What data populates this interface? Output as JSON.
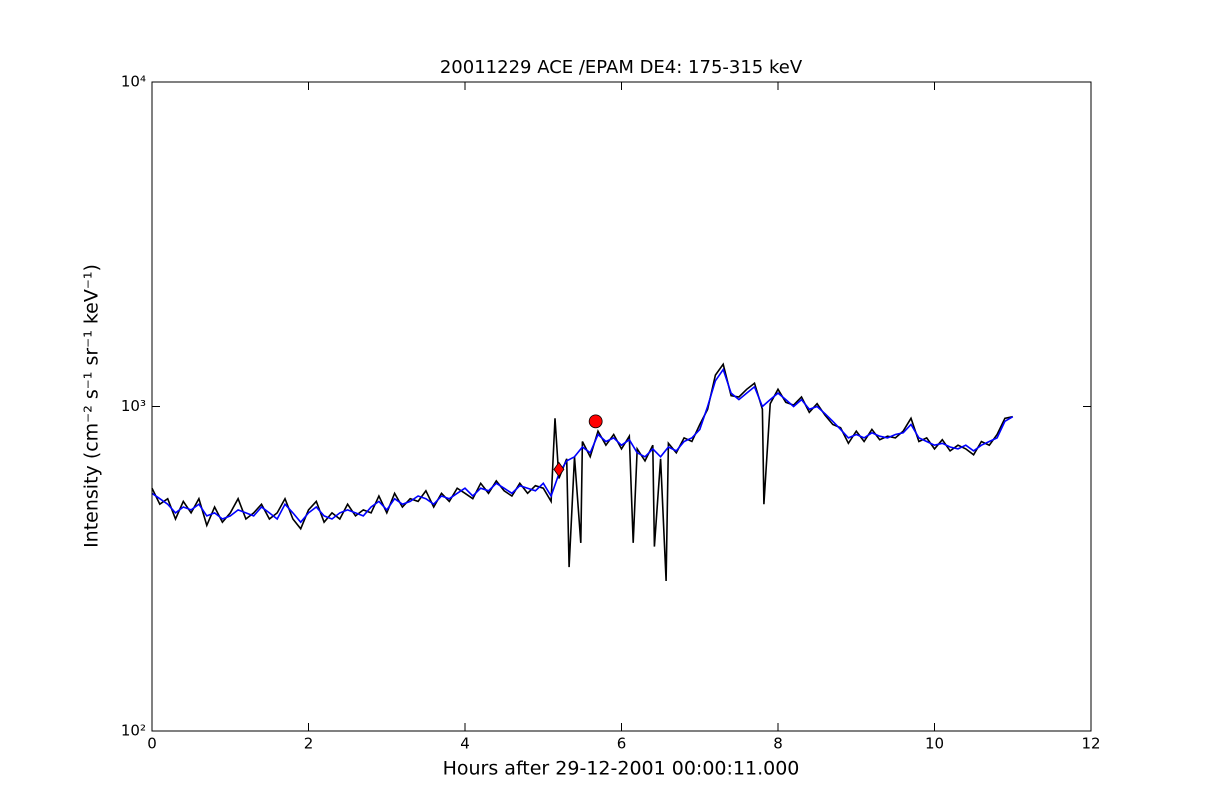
{
  "chart_data": {
    "type": "line",
    "title": "20011229 ACE /EPAM DE4: 175-315 keV",
    "x_label": "Hours after 29-12-2001 00:00:11.000",
    "y_label": "Intensity (cm⁻² s⁻¹ sr⁻¹ keV⁻¹)",
    "xlim": [
      0,
      12
    ],
    "xticks": [
      0,
      2,
      4,
      6,
      8,
      10,
      12
    ],
    "ylim": [
      100,
      10000
    ],
    "y_scale": "log",
    "yticks": [
      {
        "value": 100,
        "label": "10²"
      },
      {
        "value": 1000,
        "label": "10³"
      },
      {
        "value": 10000,
        "label": "10⁴"
      }
    ],
    "series": [
      {
        "color": "#000000",
        "style": "line",
        "x": [
          0,
          0.1,
          0.2,
          0.3,
          0.4,
          0.5,
          0.6,
          0.7,
          0.8,
          0.9,
          1.0,
          1.1,
          1.2,
          1.3,
          1.4,
          1.5,
          1.6,
          1.7,
          1.8,
          1.9,
          2.0,
          2.1,
          2.2,
          2.3,
          2.4,
          2.5,
          2.6,
          2.7,
          2.8,
          2.9,
          3.0,
          3.1,
          3.2,
          3.3,
          3.4,
          3.5,
          3.6,
          3.7,
          3.8,
          3.9,
          4.0,
          4.1,
          4.2,
          4.3,
          4.4,
          4.5,
          4.6,
          4.7,
          4.8,
          4.9,
          5.0,
          5.1,
          5.15,
          5.2,
          5.3,
          5.33,
          5.4,
          5.48,
          5.5,
          5.6,
          5.7,
          5.8,
          5.9,
          6.0,
          6.1,
          6.15,
          6.2,
          6.3,
          6.4,
          6.42,
          6.5,
          6.57,
          6.6,
          6.7,
          6.8,
          6.9,
          7.0,
          7.1,
          7.2,
          7.3,
          7.4,
          7.5,
          7.6,
          7.7,
          7.8,
          7.82,
          7.9,
          8.0,
          8.1,
          8.2,
          8.3,
          8.4,
          8.5,
          8.6,
          8.7,
          8.8,
          8.9,
          9.0,
          9.1,
          9.2,
          9.3,
          9.4,
          9.5,
          9.6,
          9.7,
          9.8,
          9.9,
          10.0,
          10.1,
          10.2,
          10.3,
          10.4,
          10.5,
          10.6,
          10.7,
          10.8,
          10.9,
          11.0
        ],
        "values": [
          560,
          500,
          520,
          450,
          510,
          470,
          520,
          430,
          490,
          440,
          470,
          520,
          450,
          470,
          500,
          450,
          470,
          520,
          450,
          420,
          480,
          510,
          440,
          470,
          450,
          500,
          460,
          480,
          470,
          530,
          470,
          540,
          490,
          520,
          510,
          550,
          490,
          540,
          510,
          560,
          540,
          520,
          580,
          540,
          590,
          550,
          530,
          580,
          540,
          570,
          560,
          510,
          920,
          600,
          690,
          320,
          700,
          380,
          780,
          700,
          840,
          760,
          820,
          740,
          810,
          380,
          740,
          680,
          760,
          370,
          690,
          290,
          770,
          720,
          800,
          780,
          880,
          980,
          1250,
          1350,
          1080,
          1070,
          1130,
          1180,
          980,
          500,
          1020,
          1130,
          1030,
          1010,
          1070,
          960,
          1020,
          940,
          880,
          860,
          770,
          840,
          780,
          850,
          790,
          810,
          800,
          840,
          920,
          780,
          800,
          740,
          790,
          730,
          760,
          740,
          710,
          780,
          760,
          820,
          920,
          930
        ]
      },
      {
        "color": "#0000ff",
        "style": "line",
        "x": [
          0,
          0.1,
          0.2,
          0.3,
          0.4,
          0.5,
          0.6,
          0.7,
          0.8,
          0.9,
          1.0,
          1.1,
          1.2,
          1.3,
          1.4,
          1.5,
          1.6,
          1.7,
          1.8,
          1.9,
          2.0,
          2.1,
          2.2,
          2.3,
          2.4,
          2.5,
          2.6,
          2.7,
          2.8,
          2.9,
          3.0,
          3.1,
          3.2,
          3.3,
          3.4,
          3.5,
          3.6,
          3.7,
          3.8,
          3.9,
          4.0,
          4.1,
          4.2,
          4.3,
          4.4,
          4.5,
          4.6,
          4.7,
          4.8,
          4.9,
          5.0,
          5.1,
          5.2,
          5.3,
          5.4,
          5.5,
          5.6,
          5.7,
          5.8,
          5.9,
          6.0,
          6.1,
          6.2,
          6.3,
          6.4,
          6.5,
          6.6,
          6.7,
          6.8,
          6.9,
          7.0,
          7.1,
          7.2,
          7.3,
          7.4,
          7.5,
          7.6,
          7.7,
          7.8,
          7.9,
          8.0,
          8.1,
          8.2,
          8.3,
          8.4,
          8.5,
          8.6,
          8.7,
          8.8,
          8.9,
          9.0,
          9.1,
          9.2,
          9.3,
          9.4,
          9.5,
          9.6,
          9.7,
          9.8,
          9.9,
          10.0,
          10.1,
          10.2,
          10.3,
          10.4,
          10.5,
          10.6,
          10.7,
          10.8,
          10.9,
          11.0
        ],
        "values": [
          540,
          520,
          500,
          470,
          490,
          480,
          500,
          460,
          470,
          450,
          460,
          480,
          470,
          460,
          490,
          470,
          450,
          500,
          470,
          440,
          470,
          490,
          460,
          450,
          470,
          480,
          470,
          460,
          490,
          510,
          480,
          520,
          500,
          510,
          530,
          520,
          500,
          530,
          520,
          540,
          560,
          530,
          560,
          550,
          580,
          560,
          540,
          570,
          560,
          550,
          580,
          530,
          620,
          680,
          700,
          750,
          720,
          820,
          780,
          800,
          760,
          790,
          720,
          700,
          740,
          700,
          750,
          730,
          780,
          800,
          850,
          1000,
          1200,
          1300,
          1100,
          1050,
          1100,
          1150,
          1000,
          1050,
          1100,
          1050,
          1000,
          1050,
          980,
          1000,
          950,
          900,
          850,
          800,
          820,
          800,
          830,
          810,
          800,
          820,
          830,
          880,
          800,
          780,
          760,
          770,
          750,
          740,
          760,
          730,
          760,
          780,
          800,
          900,
          930
        ]
      },
      {
        "color": "#ff0000",
        "style": "diamond",
        "x": [
          5.2
        ],
        "values": [
          640
        ]
      },
      {
        "color": "#ff0000",
        "style": "circle",
        "x": [
          5.67
        ],
        "values": [
          900
        ]
      }
    ]
  }
}
